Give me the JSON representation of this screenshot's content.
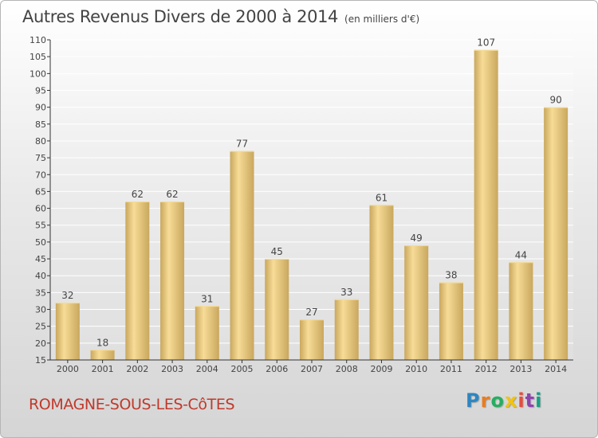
{
  "header": {
    "title": "Autres Revenus Divers de 2000 à 2014",
    "subtitle": "(en milliers d'€)"
  },
  "footer": {
    "commune": "ROMAGNE-SOUS-LES-CôTES",
    "logo": {
      "letters": [
        "P",
        "r",
        "o",
        "x",
        "i",
        "t",
        "i"
      ],
      "colors": [
        "#2e86c1",
        "#e67e22",
        "#27ae60",
        "#f1c40f",
        "#e74c3c",
        "#8e44ad",
        "#16a085"
      ]
    }
  },
  "colors": {
    "bar_light": "#f7dc97",
    "bar_dark": "#c9a75d",
    "grid": "#ffffff",
    "axis": "#333333",
    "text": "#444444",
    "commune_text": "#c0392b"
  },
  "chart_data": {
    "type": "bar",
    "title": "Autres Revenus Divers de 2000 à 2014",
    "subtitle": "(en milliers d'€)",
    "categories": [
      "2000",
      "2001",
      "2002",
      "2003",
      "2004",
      "2005",
      "2006",
      "2007",
      "2008",
      "2009",
      "2010",
      "2011",
      "2012",
      "2013",
      "2014"
    ],
    "values": [
      32,
      18,
      62,
      62,
      31,
      77,
      45,
      27,
      33,
      61,
      49,
      38,
      107,
      44,
      90
    ],
    "data_labels": [
      "32",
      "18",
      "62",
      "62",
      "31",
      "77",
      "45",
      "27",
      "33",
      "61",
      "49",
      "38",
      "107",
      "44",
      "90"
    ],
    "ylim": [
      15,
      110
    ],
    "yticks": [
      15,
      20,
      25,
      30,
      35,
      40,
      45,
      50,
      55,
      60,
      65,
      70,
      75,
      80,
      85,
      90,
      95,
      100,
      105,
      110
    ],
    "grid": true,
    "legend": "none"
  }
}
